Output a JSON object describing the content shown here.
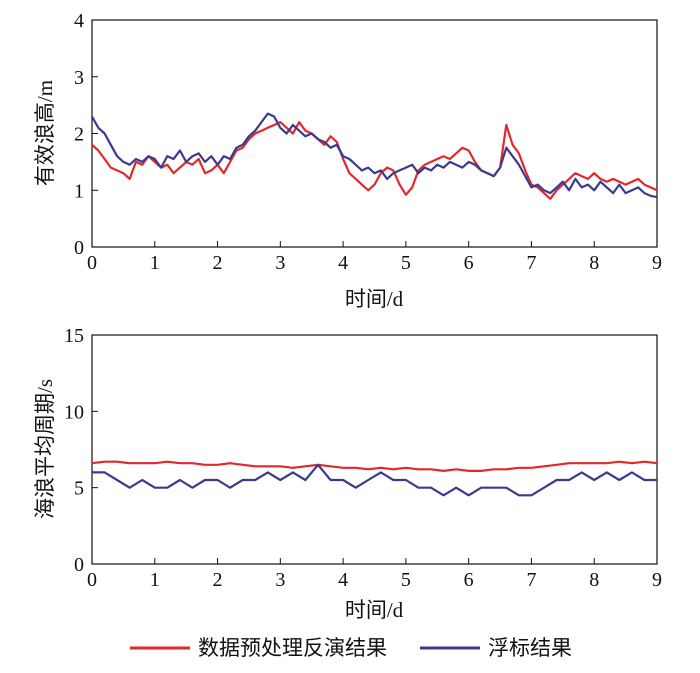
{
  "legend": {
    "items": [
      {
        "label": "数据预处理反演结果",
        "color": "#e3282b"
      },
      {
        "label": "浮标结果",
        "color": "#3a3b8f"
      }
    ],
    "placement": "bottom"
  },
  "chart_data": [
    {
      "type": "line",
      "xlabel": "时间/d",
      "ylabel": "有效浪高/m",
      "xlim": [
        0,
        9
      ],
      "ylim": [
        0,
        4
      ],
      "xticks": [
        "0",
        "1",
        "2",
        "3",
        "4",
        "5",
        "6",
        "7",
        "8",
        "9"
      ],
      "yticks": [
        "0",
        "1",
        "2",
        "3",
        "4"
      ],
      "grid": false,
      "series": [
        {
          "name": "数据预处理反演结果",
          "color": "#e3282b",
          "x": [
            0,
            0.1,
            0.2,
            0.3,
            0.4,
            0.5,
            0.6,
            0.7,
            0.8,
            0.9,
            1.0,
            1.1,
            1.2,
            1.3,
            1.4,
            1.5,
            1.6,
            1.7,
            1.8,
            1.9,
            2.0,
            2.1,
            2.2,
            2.3,
            2.4,
            2.5,
            2.6,
            2.7,
            2.8,
            2.9,
            3.0,
            3.1,
            3.2,
            3.3,
            3.4,
            3.5,
            3.6,
            3.7,
            3.8,
            3.9,
            4.0,
            4.1,
            4.2,
            4.3,
            4.4,
            4.5,
            4.6,
            4.7,
            4.8,
            4.9,
            5.0,
            5.1,
            5.2,
            5.3,
            5.4,
            5.5,
            5.6,
            5.7,
            5.8,
            5.9,
            6.0,
            6.1,
            6.2,
            6.3,
            6.4,
            6.5,
            6.6,
            6.7,
            6.8,
            6.9,
            7.0,
            7.1,
            7.2,
            7.3,
            7.4,
            7.5,
            7.6,
            7.7,
            7.8,
            7.9,
            8.0,
            8.1,
            8.2,
            8.3,
            8.4,
            8.5,
            8.6,
            8.7,
            8.8,
            8.9,
            9.0
          ],
          "values": [
            1.8,
            1.7,
            1.55,
            1.4,
            1.35,
            1.3,
            1.2,
            1.5,
            1.45,
            1.6,
            1.5,
            1.4,
            1.45,
            1.3,
            1.4,
            1.5,
            1.45,
            1.55,
            1.3,
            1.35,
            1.45,
            1.3,
            1.5,
            1.7,
            1.75,
            1.9,
            2.0,
            2.05,
            2.1,
            2.15,
            2.2,
            2.1,
            2.0,
            2.2,
            2.05,
            2.0,
            1.9,
            1.8,
            1.95,
            1.85,
            1.55,
            1.3,
            1.2,
            1.1,
            1.0,
            1.1,
            1.3,
            1.4,
            1.35,
            1.1,
            0.92,
            1.05,
            1.35,
            1.45,
            1.5,
            1.55,
            1.6,
            1.55,
            1.65,
            1.75,
            1.7,
            1.5,
            1.35,
            1.3,
            1.25,
            1.4,
            2.15,
            1.8,
            1.65,
            1.35,
            1.1,
            1.05,
            0.95,
            0.85,
            1.0,
            1.1,
            1.2,
            1.3,
            1.25,
            1.2,
            1.3,
            1.2,
            1.15,
            1.2,
            1.15,
            1.1,
            1.15,
            1.2,
            1.1,
            1.05,
            1.0
          ]
        },
        {
          "name": "浮标结果",
          "color": "#3a3b8f",
          "x": [
            0,
            0.1,
            0.2,
            0.3,
            0.4,
            0.5,
            0.6,
            0.7,
            0.8,
            0.9,
            1.0,
            1.1,
            1.2,
            1.3,
            1.4,
            1.5,
            1.6,
            1.7,
            1.8,
            1.9,
            2.0,
            2.1,
            2.2,
            2.3,
            2.4,
            2.5,
            2.6,
            2.7,
            2.8,
            2.9,
            3.0,
            3.1,
            3.2,
            3.3,
            3.4,
            3.5,
            3.6,
            3.7,
            3.8,
            3.9,
            4.0,
            4.1,
            4.2,
            4.3,
            4.4,
            4.5,
            4.6,
            4.7,
            4.8,
            4.9,
            5.0,
            5.1,
            5.2,
            5.3,
            5.4,
            5.5,
            5.6,
            5.7,
            5.8,
            5.9,
            6.0,
            6.1,
            6.2,
            6.3,
            6.4,
            6.5,
            6.6,
            6.7,
            6.8,
            6.9,
            7.0,
            7.1,
            7.2,
            7.3,
            7.4,
            7.5,
            7.6,
            7.7,
            7.8,
            7.9,
            8.0,
            8.1,
            8.2,
            8.3,
            8.4,
            8.5,
            8.6,
            8.7,
            8.8,
            8.9,
            9.0
          ],
          "values": [
            2.3,
            2.1,
            2.0,
            1.8,
            1.6,
            1.5,
            1.45,
            1.55,
            1.5,
            1.6,
            1.55,
            1.4,
            1.6,
            1.55,
            1.7,
            1.5,
            1.6,
            1.65,
            1.5,
            1.6,
            1.45,
            1.6,
            1.55,
            1.75,
            1.8,
            1.95,
            2.05,
            2.2,
            2.35,
            2.3,
            2.1,
            2.0,
            2.15,
            2.05,
            1.95,
            2.0,
            1.9,
            1.85,
            1.75,
            1.8,
            1.6,
            1.55,
            1.45,
            1.35,
            1.4,
            1.3,
            1.35,
            1.2,
            1.3,
            1.35,
            1.4,
            1.45,
            1.3,
            1.4,
            1.35,
            1.45,
            1.4,
            1.5,
            1.45,
            1.4,
            1.5,
            1.45,
            1.35,
            1.3,
            1.25,
            1.4,
            1.75,
            1.6,
            1.45,
            1.25,
            1.05,
            1.1,
            1.0,
            0.95,
            1.05,
            1.15,
            1.0,
            1.2,
            1.05,
            1.1,
            1.0,
            1.15,
            1.05,
            0.95,
            1.1,
            0.95,
            1.0,
            1.05,
            0.95,
            0.9,
            0.88
          ]
        }
      ]
    },
    {
      "type": "line",
      "xlabel": "时间/d",
      "ylabel": "海浪平均周期/s",
      "xlim": [
        0,
        9
      ],
      "ylim": [
        0,
        15
      ],
      "xticks": [
        "0",
        "1",
        "2",
        "3",
        "4",
        "5",
        "6",
        "7",
        "8",
        "9"
      ],
      "yticks": [
        "0",
        "5",
        "10",
        "15"
      ],
      "grid": false,
      "series": [
        {
          "name": "数据预处理反演结果",
          "color": "#e3282b",
          "x": [
            0,
            0.2,
            0.4,
            0.6,
            0.8,
            1.0,
            1.2,
            1.4,
            1.6,
            1.8,
            2.0,
            2.2,
            2.4,
            2.6,
            2.8,
            3.0,
            3.2,
            3.4,
            3.6,
            3.8,
            4.0,
            4.2,
            4.4,
            4.6,
            4.8,
            5.0,
            5.2,
            5.4,
            5.6,
            5.8,
            6.0,
            6.2,
            6.4,
            6.6,
            6.8,
            7.0,
            7.2,
            7.4,
            7.6,
            7.8,
            8.0,
            8.2,
            8.4,
            8.6,
            8.8,
            9.0
          ],
          "values": [
            6.6,
            6.7,
            6.7,
            6.6,
            6.6,
            6.6,
            6.7,
            6.6,
            6.6,
            6.5,
            6.5,
            6.6,
            6.5,
            6.4,
            6.4,
            6.4,
            6.3,
            6.4,
            6.5,
            6.4,
            6.3,
            6.3,
            6.2,
            6.3,
            6.2,
            6.3,
            6.2,
            6.2,
            6.1,
            6.2,
            6.1,
            6.1,
            6.2,
            6.2,
            6.3,
            6.3,
            6.4,
            6.5,
            6.6,
            6.6,
            6.6,
            6.6,
            6.7,
            6.6,
            6.7,
            6.6
          ]
        },
        {
          "name": "浮标结果",
          "color": "#3a3b8f",
          "x": [
            0,
            0.2,
            0.4,
            0.6,
            0.8,
            1.0,
            1.2,
            1.4,
            1.6,
            1.8,
            2.0,
            2.2,
            2.4,
            2.6,
            2.8,
            3.0,
            3.2,
            3.4,
            3.6,
            3.8,
            4.0,
            4.2,
            4.4,
            4.6,
            4.8,
            5.0,
            5.2,
            5.4,
            5.6,
            5.8,
            6.0,
            6.2,
            6.4,
            6.6,
            6.8,
            7.0,
            7.2,
            7.4,
            7.6,
            7.8,
            8.0,
            8.2,
            8.4,
            8.6,
            8.8,
            9.0
          ],
          "values": [
            6.0,
            6.0,
            5.5,
            5.0,
            5.5,
            5.0,
            5.0,
            5.5,
            5.0,
            5.5,
            5.5,
            5.0,
            5.5,
            5.5,
            6.0,
            5.5,
            6.0,
            5.5,
            6.5,
            5.5,
            5.5,
            5.0,
            5.5,
            6.0,
            5.5,
            5.5,
            5.0,
            5.0,
            4.5,
            5.0,
            4.5,
            5.0,
            5.0,
            5.0,
            4.5,
            4.5,
            5.0,
            5.5,
            5.5,
            6.0,
            5.5,
            6.0,
            5.5,
            6.0,
            5.5,
            5.5
          ]
        }
      ]
    }
  ]
}
